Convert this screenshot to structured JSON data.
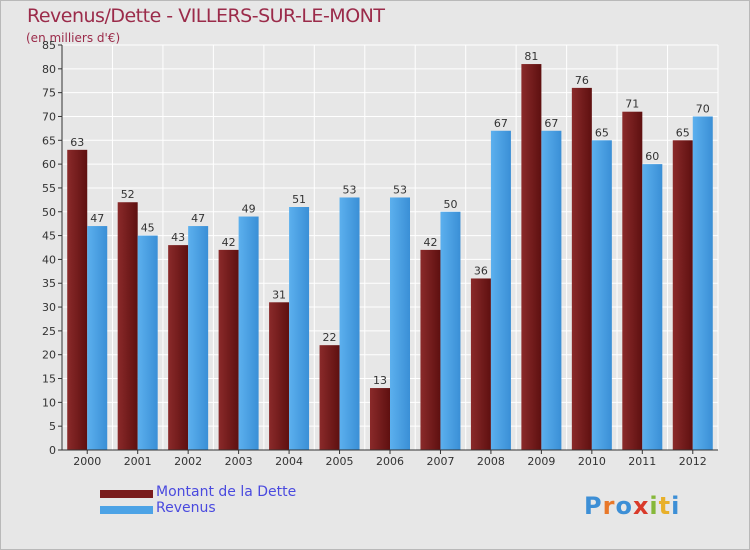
{
  "header": {
    "title": "Revenus/Dette - VILLERS-SUR-LE-MONT",
    "subtitle": "(en milliers d'€)"
  },
  "logo": {
    "text": "Proxiti",
    "letters": [
      "P",
      "r",
      "o",
      "x",
      "i",
      "t",
      "i"
    ],
    "colors": [
      "#3d8fd6",
      "#e8782a",
      "#3d8fd6",
      "#d93a2a",
      "#86b83a",
      "#e8b02a",
      "#3d8fd6"
    ]
  },
  "chart_data": {
    "type": "bar",
    "title": "Revenus/Dette - VILLERS-SUR-LE-MONT",
    "ylabel": "(en milliers d'€)",
    "xlabel": "",
    "categories": [
      "2000",
      "2001",
      "2002",
      "2003",
      "2004",
      "2005",
      "2006",
      "2007",
      "2008",
      "2009",
      "2010",
      "2011",
      "2012"
    ],
    "series": [
      {
        "name": "Montant de la Dette",
        "color": "#7a1c1c",
        "values": [
          63,
          52,
          43,
          42,
          31,
          22,
          13,
          42,
          36,
          81,
          76,
          71,
          65
        ]
      },
      {
        "name": "Revenus",
        "color": "#4da3e6",
        "values": [
          47,
          45,
          47,
          49,
          51,
          53,
          53,
          50,
          67,
          67,
          65,
          60,
          70
        ]
      }
    ],
    "ylim": [
      0,
      85
    ],
    "yticks": [
      0,
      5,
      10,
      15,
      20,
      25,
      30,
      35,
      40,
      45,
      50,
      55,
      60,
      65,
      70,
      75,
      80,
      85
    ],
    "grid": true,
    "legend_position": "bottom-left"
  }
}
